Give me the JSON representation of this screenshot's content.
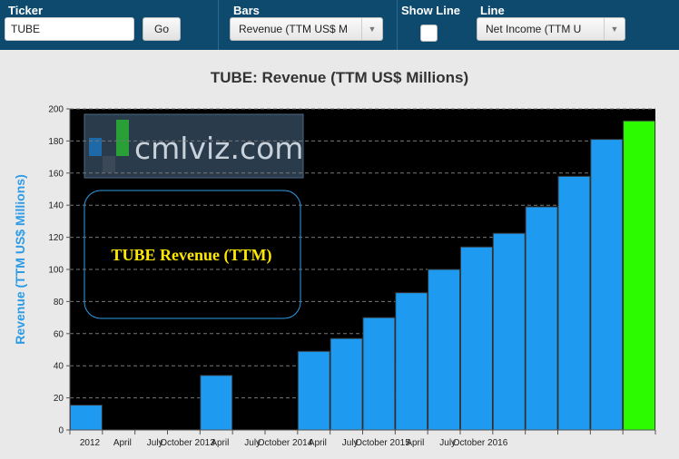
{
  "toolbar": {
    "ticker_label": "Ticker",
    "ticker_value": "TUBE",
    "go_label": "Go",
    "bars_label": "Bars",
    "bars_selected": "Revenue (TTM US$ M",
    "show_line_label": "Show Line",
    "show_line_checked": false,
    "line_label": "Line",
    "line_selected": "Net Income (TTM U"
  },
  "watermark": {
    "text": "cmlviz.com"
  },
  "annotation_box": {
    "text": "TUBE Revenue (TTM)"
  },
  "colors": {
    "toolbar": "#0d4a6e",
    "bar": "#1e9bf0",
    "highlight_bar": "#2cfb00",
    "plot_bg": "#000000",
    "axis_label": "#2e9be6",
    "annotation": "#ffe800"
  },
  "chart_data": {
    "type": "bar",
    "title": "TUBE: Revenue (TTM US$ Millions)",
    "ylabel": "Revenue (TTM US$ Millions)",
    "xlabel": "",
    "ylim": [
      0,
      200
    ],
    "yticks": [
      0,
      20,
      40,
      60,
      80,
      100,
      120,
      140,
      160,
      180,
      200
    ],
    "grid": "horizontal dashed",
    "x_tick_labels": [
      "2012",
      "April",
      "July",
      "October 2013",
      "April",
      "July",
      "October 2014",
      "April",
      "July",
      "October 2015",
      "April",
      "July",
      "October 2016"
    ],
    "values": [
      15.5,
      null,
      null,
      null,
      34,
      null,
      null,
      49,
      57,
      70,
      85.5,
      100,
      114,
      122.5,
      139,
      158,
      181,
      192.5
    ],
    "highlight_index": 17
  }
}
